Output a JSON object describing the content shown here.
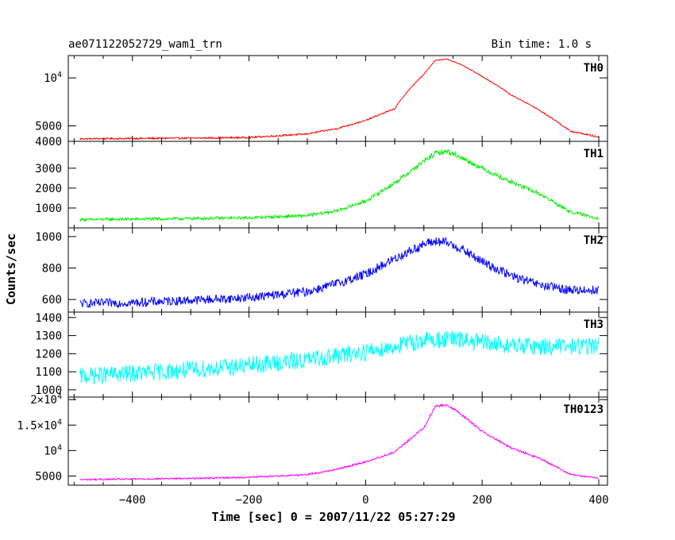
{
  "header": {
    "left_title": "ae071122052729_wam1_trn",
    "right_title": "Bin time: 1.0 s"
  },
  "axes": {
    "xlabel": "Time [sec] 0 = 2007/11/22 05:27:29",
    "ylabel": "Counts/sec"
  },
  "chart_data": {
    "type": "line",
    "title": "ae071122052729_wam1_trn",
    "subtitle": "Bin time: 1.0 s",
    "xlabel": "Time [sec] 0 = 2007/11/22 05:27:29",
    "ylabel": "Counts/sec",
    "xlim": [
      -510,
      415
    ],
    "xticks": [
      -400,
      -200,
      0,
      200,
      400
    ],
    "grid": false,
    "panels": [
      {
        "name": "TH0",
        "color": "#ff0000",
        "ylim": [
          4000,
          13800
        ],
        "yscale": "log",
        "yticks": [
          {
            "value": 4000,
            "label": "4000"
          },
          {
            "value": 5000,
            "label": "5000"
          },
          {
            "value": 10000,
            "label": "10^4"
          }
        ],
        "noise": 50,
        "x": [
          -490,
          -400,
          -300,
          -200,
          -100,
          -50,
          0,
          50,
          100,
          120,
          140,
          160,
          200,
          250,
          300,
          350,
          400
        ],
        "y": [
          4150,
          4170,
          4190,
          4230,
          4450,
          4800,
          5400,
          6400,
          10500,
          12900,
          13100,
          12300,
          10200,
          7800,
          6200,
          4650,
          4250
        ]
      },
      {
        "name": "TH1",
        "color": "#00ee00",
        "ylim": [
          0,
          4350
        ],
        "yscale": "linear",
        "yticks": [
          {
            "value": 1000,
            "label": "1000"
          },
          {
            "value": 2000,
            "label": "2000"
          },
          {
            "value": 3000,
            "label": "3000"
          }
        ],
        "noise": 70,
        "x": [
          -490,
          -400,
          -300,
          -200,
          -100,
          -50,
          0,
          50,
          100,
          120,
          140,
          160,
          200,
          250,
          300,
          350,
          400
        ],
        "y": [
          420,
          440,
          470,
          510,
          620,
          850,
          1350,
          2250,
          3350,
          3750,
          3850,
          3600,
          3000,
          2300,
          1700,
          820,
          480
        ]
      },
      {
        "name": "TH2",
        "color": "#0000ff",
        "ylim": [
          520,
          1055
        ],
        "yscale": "linear",
        "yticks": [
          {
            "value": 600,
            "label": "600"
          },
          {
            "value": 800,
            "label": "800"
          },
          {
            "value": 1000,
            "label": "1000"
          }
        ],
        "noise": 28,
        "x": [
          -490,
          -400,
          -300,
          -200,
          -100,
          -50,
          0,
          50,
          100,
          120,
          140,
          160,
          200,
          250,
          300,
          350,
          400
        ],
        "y": [
          575,
          580,
          595,
          612,
          650,
          700,
          760,
          860,
          950,
          970,
          960,
          930,
          840,
          750,
          690,
          660,
          660
        ]
      },
      {
        "name": "TH3",
        "color": "#00ffff",
        "ylim": [
          960,
          1430
        ],
        "yscale": "linear",
        "yticks": [
          {
            "value": 1000,
            "label": "1000"
          },
          {
            "value": 1100,
            "label": "1100"
          },
          {
            "value": 1200,
            "label": "1200"
          },
          {
            "value": 1300,
            "label": "1300"
          },
          {
            "value": 1400,
            "label": "1400"
          }
        ],
        "noise": 48,
        "x": [
          -490,
          -400,
          -300,
          -200,
          -100,
          0,
          50,
          100,
          150,
          200,
          250,
          300,
          350,
          400
        ],
        "y": [
          1075,
          1090,
          1110,
          1135,
          1165,
          1210,
          1240,
          1275,
          1280,
          1260,
          1245,
          1240,
          1240,
          1245
        ]
      },
      {
        "name": "TH0123",
        "color": "#ff00ff",
        "ylim": [
          3200,
          20500
        ],
        "yscale": "linear",
        "yticks": [
          {
            "value": 5000,
            "label": "5000"
          },
          {
            "value": 10000,
            "label": "10^4"
          },
          {
            "value": 15000,
            "label": "1.5×10^4"
          },
          {
            "value": 20000,
            "label": "2×10^4"
          }
        ],
        "noise": 160,
        "x": [
          -490,
          -400,
          -300,
          -200,
          -100,
          -50,
          0,
          50,
          100,
          120,
          140,
          160,
          200,
          250,
          300,
          350,
          400
        ],
        "y": [
          4300,
          4400,
          4550,
          4750,
          5300,
          6300,
          7800,
          9700,
          14500,
          18700,
          19000,
          17500,
          13800,
          10500,
          8400,
          5400,
          4500
        ]
      }
    ]
  }
}
